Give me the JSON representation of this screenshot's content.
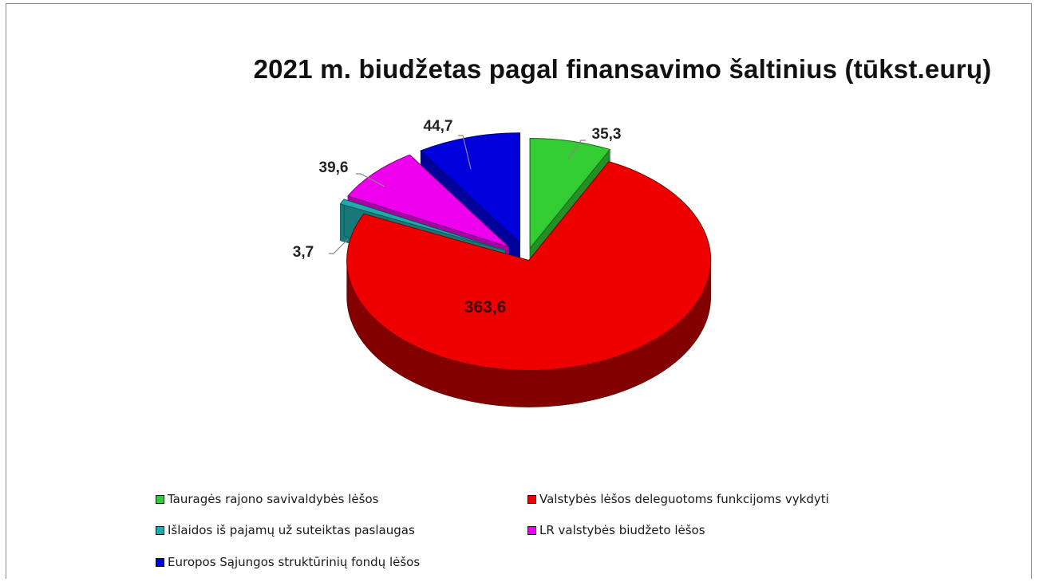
{
  "chart_data": {
    "type": "pie",
    "title": "2021 m. biudžetas pagal finansavimo šaltinius (tūkst.eurų)",
    "slices": [
      {
        "label": "Tauragės rajono savivaldybės lėšos",
        "value": 35.3,
        "value_label": "35,3",
        "color": "#33cc33"
      },
      {
        "label": "Valstybės lėšos deleguotoms funkcijoms vykdyti",
        "value": 363.6,
        "value_label": "363,6",
        "color": "#ee0000"
      },
      {
        "label": "Išlaidos iš pajamų už suteiktas paslaugas",
        "value": 3.7,
        "value_label": "3,7",
        "color": "#22aaaa"
      },
      {
        "label": "LR valstybės biudžeto lėšos",
        "value": 39.6,
        "value_label": "39,6",
        "color": "#ee00ee"
      },
      {
        "label": "Europos Sąjungos struktūrinių fondų lėšos",
        "value": 44.7,
        "value_label": "44,7",
        "color": "#0000dd"
      }
    ],
    "style": "3d-exploded",
    "legend_position": "bottom"
  }
}
